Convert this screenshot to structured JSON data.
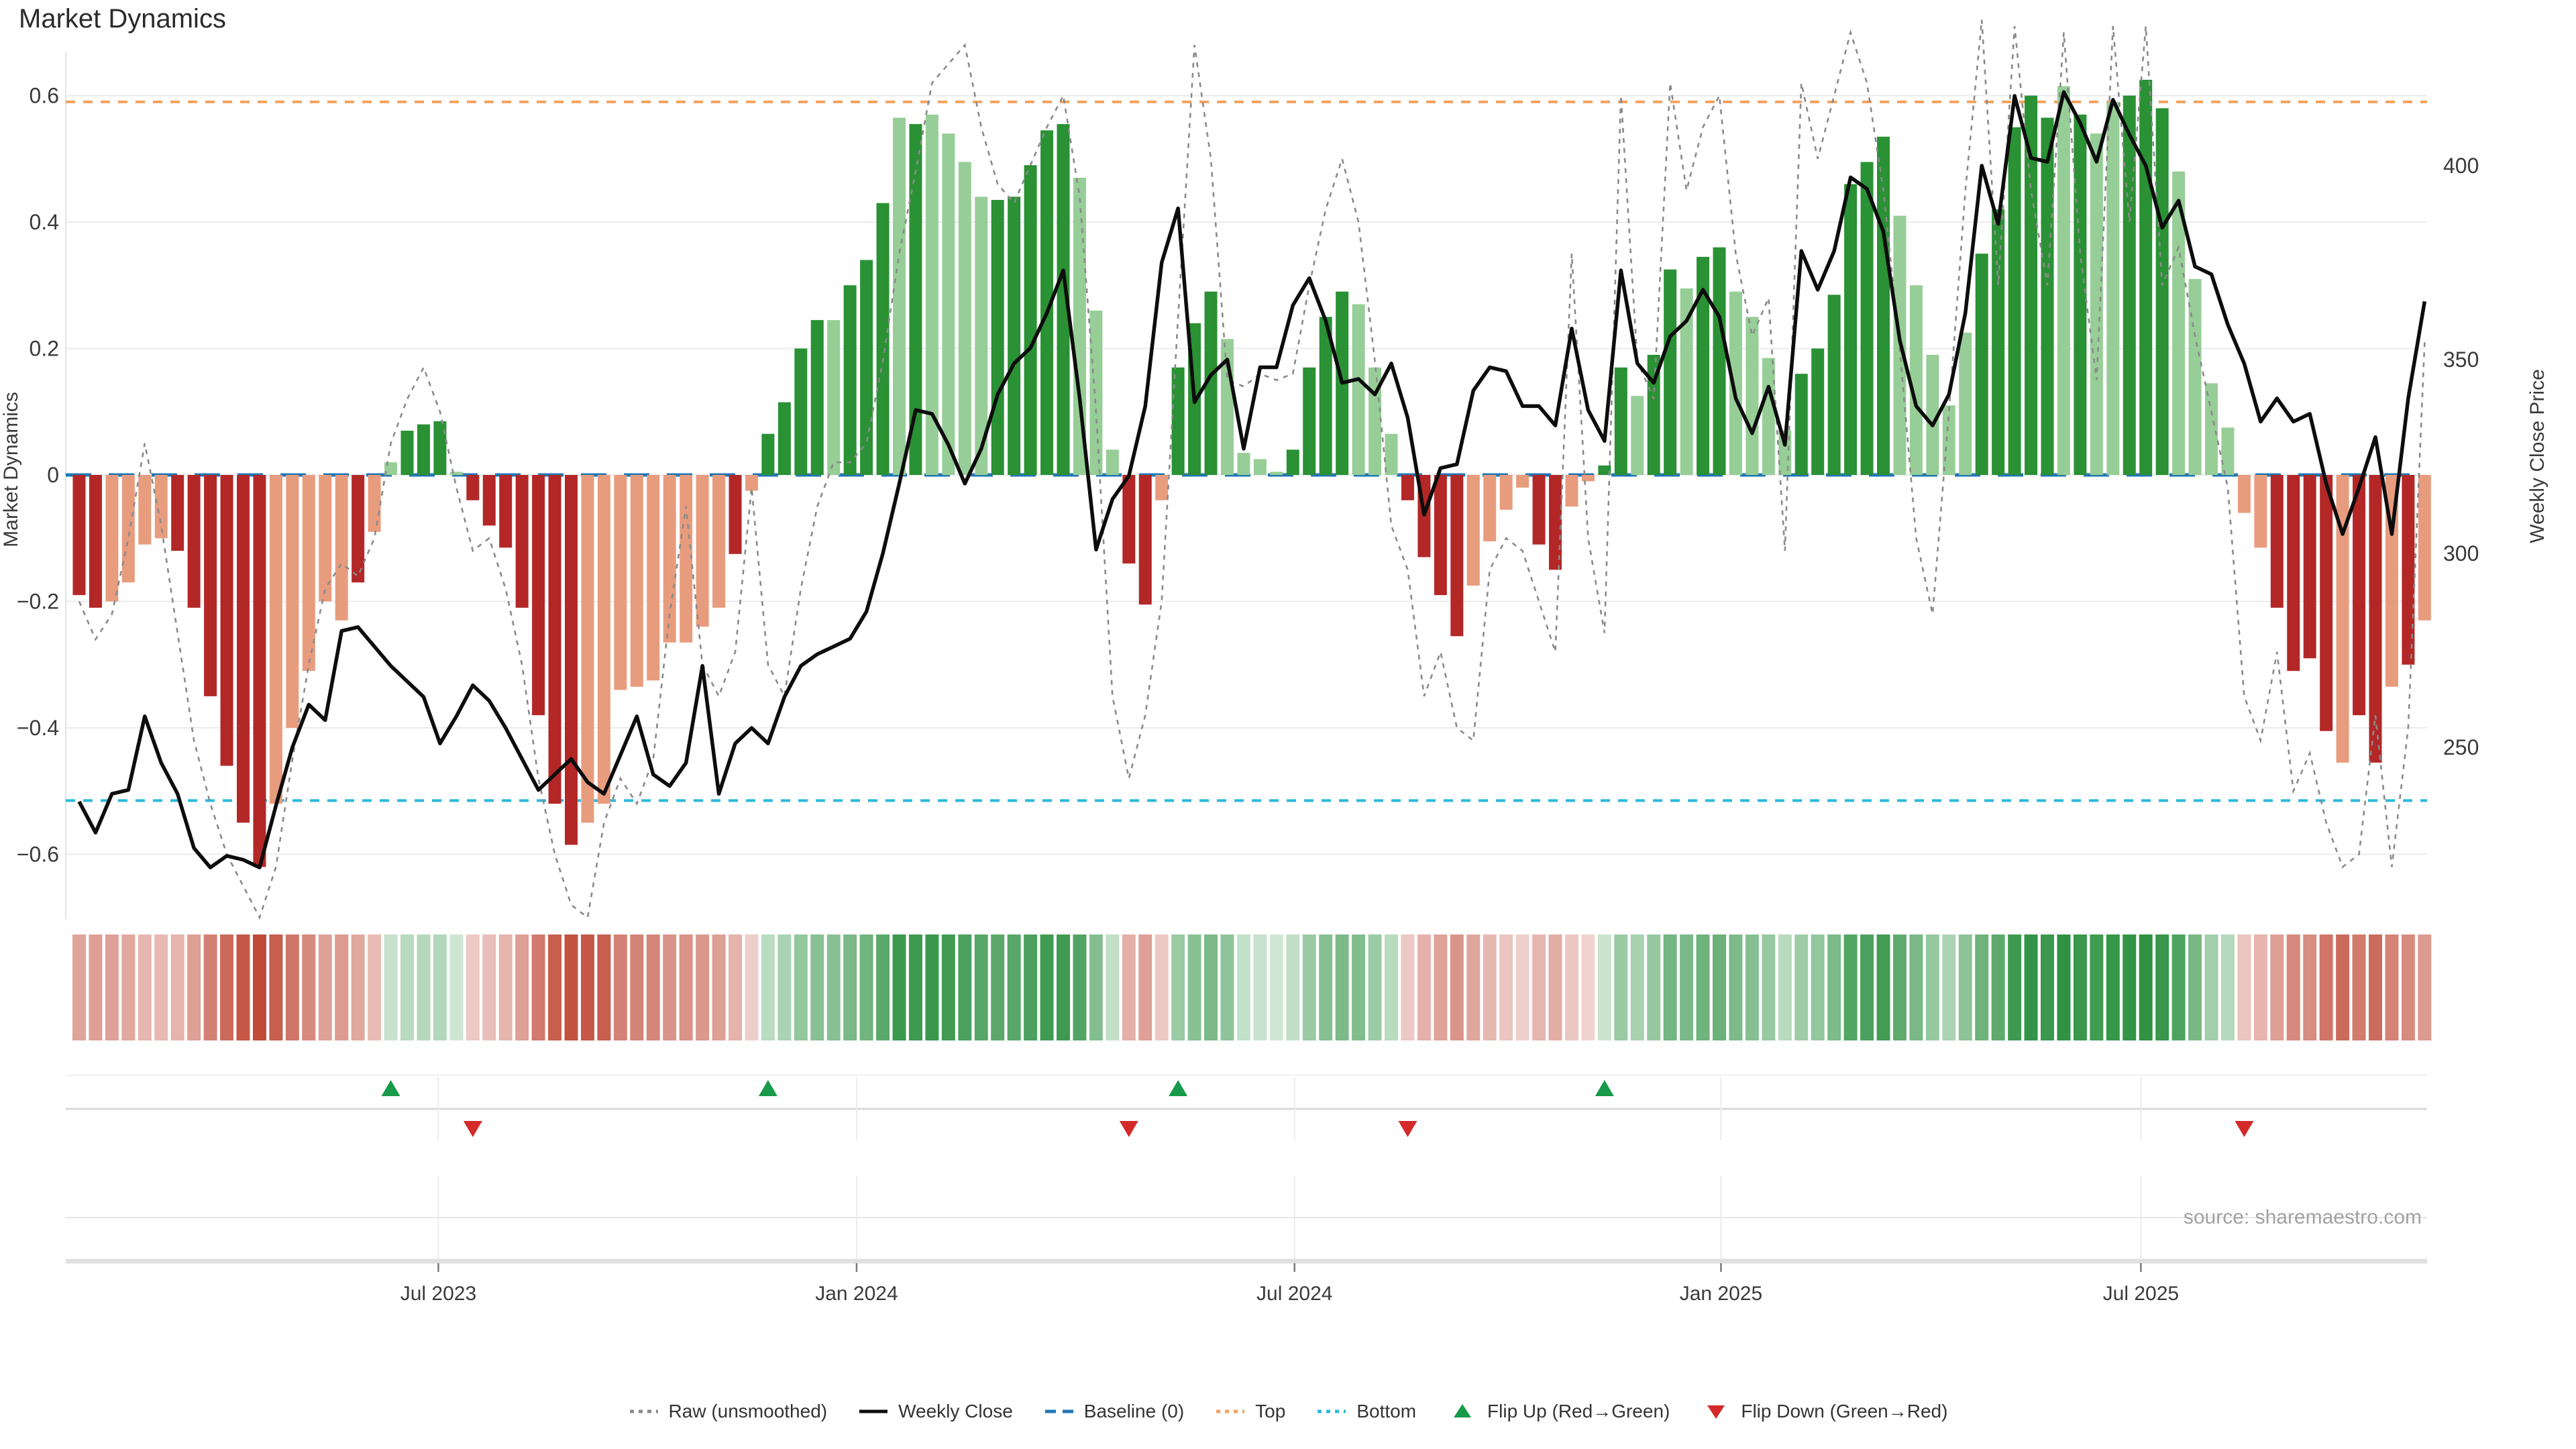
{
  "title": "Market Dynamics",
  "source_note": "source: sharemaestro.com",
  "axes": {
    "left_title": "Market Dynamics",
    "right_title": "Weekly Close Price",
    "left_ticks": [
      0.6,
      0.4,
      0.2,
      0,
      -0.2,
      -0.4,
      -0.6
    ],
    "right_ticks": [
      400,
      350,
      300,
      250
    ],
    "x_ticks": [
      {
        "label": "Jul 2023",
        "week": 22.9
      },
      {
        "label": "Jan 2024",
        "week": 48.4
      },
      {
        "label": "Jul 2024",
        "week": 75.1
      },
      {
        "label": "Jan 2025",
        "week": 101.1
      },
      {
        "label": "Jul 2025",
        "week": 126.7
      }
    ]
  },
  "legend": [
    {
      "type": "dotted",
      "color": "#8a8a8a",
      "label": "Raw (unsmoothed)"
    },
    {
      "type": "solid",
      "color": "#0d0d0d",
      "label": "Weekly Close"
    },
    {
      "type": "dashed",
      "color": "#1f77b4",
      "label": "Baseline (0)"
    },
    {
      "type": "dotted",
      "color": "#f2a35e",
      "label": "Top"
    },
    {
      "type": "dotted",
      "color": "#2bb8dc",
      "label": "Bottom"
    },
    {
      "type": "tri-up",
      "color": "#179a49",
      "label": "Flip Up (Red→Green)"
    },
    {
      "type": "tri-down",
      "color": "#d42a2a",
      "label": "Flip Down (Green→Red)"
    }
  ],
  "colors": {
    "bar_dark_green": "#2a9134",
    "bar_light_green": "#97ce97",
    "bar_dark_red": "#b42727",
    "bar_light_red": "#e89c7e",
    "baseline": "#1f77b4",
    "top_line": "#f2a35e",
    "bottom_line": "#2bb8dc",
    "raw_line": "#8a8a8a",
    "close_line": "#0d0d0d",
    "flip_up": "#179a49",
    "flip_down": "#d42a2a",
    "grid": "#ebebf0",
    "axis_text": "#3a3a3a"
  },
  "chart_data": {
    "type": "bar+line",
    "title": "Market Dynamics",
    "ylabel_left": "Market Dynamics",
    "ylabel_right": "Weekly Close Price",
    "ylim_left": [
      -0.7,
      0.7
    ],
    "ylim_right": [
      230,
      430
    ],
    "baseline": 0,
    "top_level": 0.59,
    "bottom_level": -0.515,
    "weeks": 144,
    "dynamics": [
      -0.19,
      -0.21,
      -0.2,
      -0.17,
      -0.11,
      -0.1,
      -0.12,
      -0.21,
      -0.35,
      -0.46,
      -0.55,
      -0.62,
      -0.52,
      -0.4,
      -0.31,
      -0.2,
      -0.23,
      -0.17,
      -0.09,
      0.02,
      0.07,
      0.08,
      0.085,
      0.005,
      -0.04,
      -0.08,
      -0.115,
      -0.21,
      -0.38,
      -0.52,
      -0.585,
      -0.55,
      -0.52,
      -0.34,
      -0.335,
      -0.325,
      -0.265,
      -0.265,
      -0.24,
      -0.21,
      -0.125,
      -0.025,
      0.065,
      0.115,
      0.2,
      0.245,
      0.245,
      0.3,
      0.34,
      0.43,
      0.565,
      0.555,
      0.57,
      0.54,
      0.495,
      0.44,
      0.435,
      0.44,
      0.49,
      0.545,
      0.555,
      0.47,
      0.26,
      0.04,
      -0.14,
      -0.205,
      -0.04,
      0.17,
      0.24,
      0.29,
      0.215,
      0.035,
      0.025,
      0.005,
      0.04,
      0.17,
      0.25,
      0.29,
      0.27,
      0.17,
      0.065,
      -0.04,
      -0.13,
      -0.19,
      -0.255,
      -0.175,
      -0.105,
      -0.055,
      -0.02,
      -0.11,
      -0.15,
      -0.05,
      -0.01,
      0.015,
      0.17,
      0.125,
      0.19,
      0.325,
      0.295,
      0.345,
      0.36,
      0.29,
      0.25,
      0.185,
      0.07,
      0.16,
      0.2,
      0.285,
      0.46,
      0.495,
      0.535,
      0.41,
      0.3,
      0.19,
      0.11,
      0.225,
      0.35,
      0.42,
      0.55,
      0.6,
      0.565,
      0.615,
      0.57,
      0.54,
      0.59,
      0.6,
      0.625,
      0.58,
      0.48,
      0.31,
      0.145,
      0.075,
      -0.06,
      -0.115,
      -0.21,
      -0.31,
      -0.29,
      -0.405,
      -0.455,
      -0.38,
      -0.455,
      -0.335,
      -0.3,
      -0.23
    ],
    "shade": "ddllllddddddllllldlldddldddddddllllllllldlddddldddldlllldddddlllddldddllllddddllldddd llllddllddlddlddllllddddddllllldddddldlldddllllllddddlddldlll",
    "raw": [
      -0.2,
      -0.26,
      -0.22,
      -0.1,
      0.05,
      -0.08,
      -0.25,
      -0.42,
      -0.52,
      -0.6,
      -0.65,
      -0.7,
      -0.62,
      -0.45,
      -0.3,
      -0.18,
      -0.14,
      -0.16,
      -0.1,
      0.05,
      0.12,
      0.17,
      0.1,
      -0.02,
      -0.12,
      -0.1,
      -0.18,
      -0.3,
      -0.48,
      -0.6,
      -0.68,
      -0.7,
      -0.55,
      -0.48,
      -0.52,
      -0.45,
      -0.22,
      -0.05,
      -0.3,
      -0.35,
      -0.28,
      -0.02,
      -0.3,
      -0.35,
      -0.18,
      -0.05,
      0.02,
      0.02,
      0.05,
      0.18,
      0.35,
      0.48,
      0.62,
      0.65,
      0.68,
      0.55,
      0.46,
      0.43,
      0.49,
      0.55,
      0.6,
      0.44,
      0.1,
      -0.35,
      -0.48,
      -0.38,
      -0.2,
      0.25,
      0.68,
      0.5,
      0.15,
      0.14,
      0.16,
      0.15,
      0.16,
      0.3,
      0.42,
      0.5,
      0.4,
      0.18,
      -0.08,
      -0.15,
      -0.35,
      -0.28,
      -0.4,
      -0.42,
      -0.15,
      -0.1,
      -0.12,
      -0.2,
      -0.28,
      0.35,
      -0.1,
      -0.25,
      0.6,
      0.18,
      0.12,
      0.62,
      0.45,
      0.55,
      0.6,
      0.35,
      0.22,
      0.28,
      -0.12,
      0.62,
      0.5,
      0.6,
      0.7,
      0.62,
      0.45,
      0.2,
      -0.1,
      -0.22,
      0.1,
      0.45,
      0.72,
      0.3,
      0.71,
      0.45,
      0.3,
      0.7,
      0.35,
      0.15,
      0.71,
      0.4,
      0.71,
      0.3,
      0.36,
      0.22,
      0.1,
      -0.02,
      -0.35,
      -0.42,
      -0.28,
      -0.5,
      -0.44,
      -0.55,
      -0.62,
      -0.6,
      -0.38,
      -0.62,
      -0.4,
      0.21
    ],
    "weekly_close": [
      236,
      228,
      238,
      239,
      258,
      246,
      238,
      224,
      219,
      222,
      221,
      219,
      235,
      250,
      261,
      257,
      280,
      281,
      276,
      271,
      267,
      263,
      251,
      258,
      266,
      262,
      255,
      247,
      239,
      243,
      247,
      241,
      238,
      248,
      258,
      243,
      240,
      246,
      271,
      238,
      251,
      255,
      251,
      263,
      271,
      274,
      276,
      278,
      285,
      300,
      318,
      337,
      336,
      328,
      318,
      327,
      341,
      349,
      353,
      362,
      373,
      340,
      301,
      314,
      320,
      338,
      375,
      389,
      339,
      346,
      350,
      327,
      348,
      348,
      364,
      371,
      360,
      344,
      345,
      341,
      349,
      335,
      310,
      322,
      323,
      342,
      348,
      347,
      338,
      338,
      333,
      358,
      337,
      329,
      373,
      349,
      344,
      356,
      360,
      368,
      361,
      340,
      331,
      343,
      328,
      378,
      368,
      378,
      397,
      394,
      383,
      355,
      338,
      333,
      341,
      362,
      400,
      385,
      418,
      402,
      401,
      419,
      411,
      401,
      417,
      408,
      400,
      384,
      391,
      374,
      372,
      359,
      349,
      334,
      340,
      334,
      336,
      318,
      305,
      317,
      330,
      305,
      340,
      365
    ],
    "flip_up_weeks": [
      20,
      43,
      68,
      94
    ],
    "flip_down_weeks": [
      25,
      65,
      82,
      133
    ],
    "legend_entries": [
      "Raw (unsmoothed)",
      "Weekly Close",
      "Baseline (0)",
      "Top",
      "Bottom",
      "Flip Up (Red→Green)",
      "Flip Down (Green→Red)"
    ],
    "grid": true,
    "legend_position": "bottom-center"
  }
}
